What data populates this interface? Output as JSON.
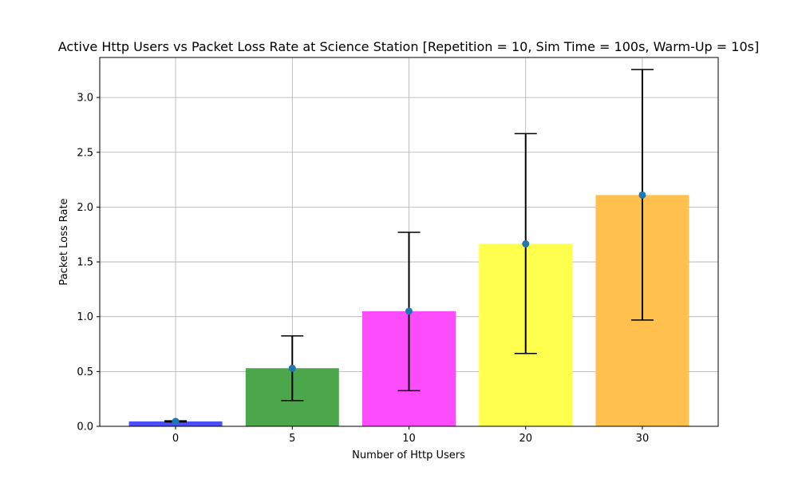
{
  "chart_data": {
    "type": "bar",
    "title": "Active Http Users vs Packet Loss Rate at Science Station [Repetition = 10, Sim Time = 100s, Warm-Up = 10s]",
    "xlabel": "Number of Http Users",
    "ylabel": "Packet Loss Rate",
    "categories": [
      "0",
      "5",
      "10",
      "20",
      "30"
    ],
    "values": [
      0.045,
      0.53,
      1.05,
      1.665,
      2.11
    ],
    "error_low": [
      0.04,
      0.235,
      0.325,
      0.665,
      0.97
    ],
    "error_high": [
      0.05,
      0.825,
      1.77,
      2.67,
      3.255
    ],
    "bar_colors": [
      "#4d4dfb",
      "#4ca64c",
      "#fc4cfc",
      "#ffff4d",
      "#ffc04d"
    ],
    "point_color": "#1f77b4",
    "yticks": [
      "0.0",
      "0.5",
      "1.0",
      "1.5",
      "2.0",
      "2.5",
      "3.0"
    ],
    "ylim": [
      0,
      3.365
    ],
    "grid": true
  }
}
